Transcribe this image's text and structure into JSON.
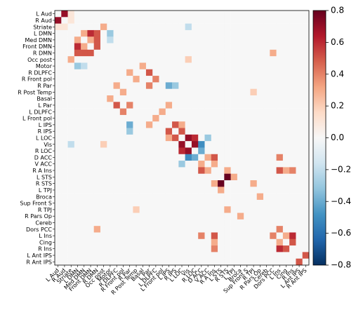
{
  "chart_data": {
    "type": "heatmap",
    "colormap": "RdBu_r",
    "x": [
      "L Aud",
      "R Aud",
      "Striate",
      "L DMN",
      "Med DMN",
      "Front DMN",
      "R DMN",
      "Occ post",
      "Motor",
      "R DLPFC",
      "R Front pol",
      "R Par",
      "R Post Temp",
      "Basal",
      "L Par",
      "L DLPFC",
      "L Front pol",
      "L IPS",
      "R IPS",
      "L LOC",
      "Vis",
      "R LOC",
      "D ACC",
      "V ACC",
      "R A Ins",
      "L STS",
      "R STS",
      "L TPJ",
      "Broca",
      "Sup Front S",
      "R TPJ",
      "R Pars Op",
      "Cereb",
      "Dors PCC",
      "L Ins",
      "Cing",
      "R Ins",
      "L Ant IPS",
      "R Ant IPS"
    ],
    "y": [
      "L Aud",
      "R Aud",
      "Striate",
      "L DMN",
      "Med DMN",
      "Front DMN",
      "R DMN",
      "Occ post",
      "Motor",
      "R DLPFC",
      "R Front pol",
      "R Par",
      "R Post Temp",
      "Basal",
      "L Par",
      "L DLPFC",
      "L Front pol",
      "L IPS",
      "R IPS",
      "L LOC",
      "Vis",
      "R LOC",
      "D ACC",
      "V ACC",
      "R A Ins",
      "L STS",
      "R STS",
      "L TPJ",
      "Broca",
      "Sup Front S",
      "R TPJ",
      "R Pars Op",
      "Cereb",
      "Dors PCC",
      "L Ins",
      "Cing",
      "R Ins",
      "L Ant IPS",
      "R Ant IPS"
    ],
    "values": [
      [
        0,
        0.7,
        0.1,
        0,
        0,
        0,
        0,
        0,
        0,
        0,
        0,
        0,
        0,
        0,
        0,
        0,
        0,
        0,
        0,
        0,
        0,
        0,
        0,
        0,
        0,
        0,
        0,
        0,
        0,
        0,
        0,
        0,
        0,
        0,
        0,
        0,
        0,
        0,
        0
      ],
      [
        0.7,
        0,
        0.1,
        0,
        0,
        0,
        0,
        0,
        0,
        0,
        0,
        0,
        0,
        0,
        0,
        0,
        0,
        0,
        0,
        0,
        0,
        0,
        0,
        0,
        0,
        0,
        0,
        0,
        0,
        0,
        0,
        0,
        0,
        0,
        0,
        0,
        0,
        0,
        0
      ],
      [
        0.1,
        0.1,
        0,
        0,
        0,
        0,
        0,
        0.3,
        0,
        0,
        0,
        0,
        0,
        0,
        0,
        0,
        0,
        0,
        0,
        0,
        -0.2,
        0,
        0,
        0,
        0,
        0,
        0,
        0,
        0,
        0,
        0,
        0,
        0,
        0,
        0,
        0,
        0,
        0,
        0
      ],
      [
        0,
        0,
        0,
        0,
        0.3,
        0.6,
        0.5,
        0,
        -0.3,
        0,
        0,
        0,
        0,
        0,
        0,
        0,
        0,
        0,
        0,
        0,
        0,
        0,
        0,
        0,
        0,
        0,
        0,
        0,
        0,
        0,
        0,
        0,
        0,
        0,
        0,
        0,
        0,
        0,
        0
      ],
      [
        0,
        0,
        0,
        0.3,
        0,
        0.3,
        0.5,
        0,
        -0.2,
        0,
        0,
        0,
        0,
        0,
        0,
        0,
        0,
        0,
        0,
        0,
        0,
        0,
        0,
        0,
        0,
        0,
        0,
        0,
        0,
        0,
        0,
        0,
        0,
        0,
        0,
        0,
        0,
        0,
        0
      ],
      [
        0,
        0,
        0,
        0.6,
        0.3,
        0,
        0.5,
        0,
        0,
        0,
        0,
        0,
        0,
        0,
        0,
        0,
        0,
        0,
        0,
        0,
        0,
        0,
        0,
        0,
        0,
        0,
        0,
        0,
        0,
        0,
        0,
        0,
        0,
        0,
        0,
        0,
        0,
        0,
        0
      ],
      [
        0,
        0,
        0,
        0.5,
        0.5,
        0.5,
        0,
        0,
        0,
        0,
        0,
        0,
        0,
        0,
        0,
        0,
        0,
        0,
        0,
        0,
        0,
        0,
        0,
        0,
        0,
        0,
        0,
        0,
        0,
        0,
        0,
        0,
        0,
        0.3,
        0,
        0,
        0,
        0,
        0
      ],
      [
        0,
        0,
        0.3,
        0,
        0,
        0,
        0,
        0,
        0,
        0,
        0,
        0,
        0,
        0,
        0,
        0,
        0,
        0,
        0,
        0,
        0.2,
        0,
        0,
        0,
        0,
        0,
        0,
        0,
        0,
        0,
        0,
        0,
        0,
        0,
        0,
        0,
        0,
        0,
        0
      ],
      [
        0,
        0,
        0,
        -0.3,
        -0.2,
        0,
        0,
        0,
        0,
        0,
        0,
        0,
        0,
        0.3,
        0,
        0,
        0,
        0,
        0,
        0,
        0,
        0,
        0,
        0,
        0,
        0,
        0,
        0,
        0,
        0,
        0,
        0,
        0,
        0,
        0,
        0,
        0,
        0,
        0
      ],
      [
        0,
        0,
        0,
        0,
        0,
        0,
        0,
        0,
        0,
        0,
        0,
        0.3,
        0,
        0,
        0.5,
        0,
        0,
        0,
        0,
        0,
        0,
        0,
        0,
        0,
        0,
        0,
        0,
        0,
        0,
        0,
        0,
        0,
        0,
        0,
        0,
        0,
        0,
        0,
        0
      ],
      [
        0,
        0,
        0,
        0,
        0,
        0,
        0,
        0,
        0,
        0,
        0,
        0,
        0.3,
        0,
        0,
        0.4,
        0,
        0,
        0,
        0,
        0,
        0,
        0,
        0,
        0,
        0,
        0,
        0,
        0,
        0,
        0,
        0,
        0,
        0,
        0,
        0,
        0,
        0,
        0
      ],
      [
        0,
        0,
        0,
        0,
        0,
        0,
        0,
        0,
        0,
        0.3,
        0,
        0,
        0,
        0,
        0.4,
        0,
        0,
        -0.4,
        -0.3,
        0,
        0,
        0,
        0,
        0,
        0,
        0,
        0,
        0,
        0,
        0,
        0,
        0,
        0,
        0,
        0,
        0,
        0,
        0,
        0
      ],
      [
        0,
        0,
        0,
        0,
        0,
        0,
        0,
        0,
        0,
        0,
        0.3,
        0,
        0,
        0,
        0,
        0,
        0,
        0,
        0,
        0,
        0,
        0,
        0,
        0,
        0,
        0,
        0,
        0,
        0,
        0,
        0.2,
        0,
        0,
        0,
        0,
        0,
        0,
        0,
        0
      ],
      [
        0,
        0,
        0,
        0,
        0,
        0,
        0,
        0,
        0.3,
        0,
        0,
        0,
        0,
        0,
        0,
        0,
        0,
        0,
        0,
        0,
        0,
        0,
        0,
        0,
        0,
        0,
        0,
        0,
        0,
        0,
        0,
        0,
        0,
        0,
        0,
        0,
        0,
        0,
        0
      ],
      [
        0,
        0,
        0,
        0,
        0,
        0,
        0,
        0,
        0,
        0.5,
        0,
        0.4,
        0,
        0,
        0,
        0,
        0,
        0.3,
        0,
        0,
        0,
        0,
        0,
        0,
        0,
        0,
        0,
        0,
        0,
        0,
        0,
        0,
        0,
        0,
        0,
        0,
        0,
        0,
        0
      ],
      [
        0,
        0,
        0,
        0,
        0,
        0,
        0,
        0,
        0,
        0,
        0.4,
        0,
        0,
        0,
        0,
        0,
        0.3,
        0,
        0,
        0,
        0,
        0,
        0,
        0,
        0,
        0,
        0,
        0,
        0,
        0,
        0,
        0,
        0,
        0,
        0,
        0,
        0,
        0,
        0
      ],
      [
        0,
        0,
        0,
        0,
        0,
        0,
        0,
        0,
        0,
        0,
        0,
        0,
        0,
        0,
        0,
        0.3,
        0,
        0,
        0,
        0,
        0,
        0,
        0,
        0,
        0,
        0,
        0,
        0,
        0,
        0,
        0,
        0,
        0,
        0,
        0,
        0,
        0,
        0,
        0
      ],
      [
        0,
        0,
        0,
        0,
        0,
        0,
        0,
        0,
        0,
        0,
        0,
        -0.4,
        0,
        0,
        0.3,
        0,
        0,
        0,
        0.5,
        0.3,
        0,
        0,
        0,
        0,
        0,
        0,
        0,
        0,
        0,
        0,
        0,
        0,
        0,
        0,
        0,
        0,
        0,
        0,
        0
      ],
      [
        0,
        0,
        0,
        0,
        0,
        0,
        0,
        0,
        0,
        0,
        0,
        -0.3,
        0,
        0,
        0,
        0,
        0,
        0.5,
        0,
        0.5,
        0,
        0,
        0,
        0,
        0,
        0,
        0,
        0,
        0,
        0,
        0,
        0,
        0,
        0,
        0,
        0,
        0,
        0,
        0
      ],
      [
        0,
        0,
        0,
        0,
        0,
        0,
        0,
        0,
        0,
        0,
        0,
        0,
        0,
        0,
        0,
        0,
        0,
        0.3,
        0.5,
        0,
        0.7,
        0.6,
        0,
        -0.3,
        0,
        0,
        0,
        0,
        0,
        0,
        0,
        0,
        0,
        0,
        0,
        0,
        0,
        0,
        0
      ],
      [
        0,
        0,
        -0.2,
        0,
        0,
        0,
        0,
        0.2,
        0,
        0,
        0,
        0,
        0,
        0,
        0,
        0,
        0,
        0,
        0,
        0.7,
        0,
        0.7,
        -0.5,
        0,
        0,
        0,
        0,
        0,
        0,
        0,
        0,
        0,
        0,
        0,
        0,
        0,
        0,
        0,
        0
      ],
      [
        0,
        0,
        0,
        0,
        0,
        0,
        0,
        0,
        0,
        0,
        0,
        0,
        0,
        0,
        0,
        0,
        0,
        0,
        0,
        0.6,
        0.7,
        0,
        -0.4,
        0,
        0,
        0,
        0,
        0,
        0,
        0,
        0,
        0,
        0,
        0,
        0,
        0,
        0,
        0,
        0
      ],
      [
        0,
        0,
        0,
        0,
        0,
        0,
        0,
        0,
        0,
        0,
        0,
        0,
        0,
        0,
        0,
        0,
        0,
        0,
        0,
        0,
        -0.5,
        -0.4,
        0,
        0.3,
        0.5,
        0,
        0,
        0,
        0,
        0,
        0,
        0,
        0,
        0,
        0.4,
        0,
        0,
        0,
        0
      ],
      [
        0,
        0,
        0,
        0,
        0,
        0,
        0,
        0,
        0,
        0,
        0,
        0,
        0,
        0,
        0,
        0,
        0,
        0,
        0,
        -0.3,
        0,
        0,
        0.3,
        0,
        0.3,
        0,
        0,
        0,
        0,
        0,
        0,
        0,
        0,
        0,
        0,
        0,
        0,
        0,
        0
      ],
      [
        0,
        0,
        0,
        0,
        0,
        0,
        0,
        0,
        0,
        0,
        0,
        0,
        0,
        0,
        0,
        0,
        0,
        0,
        0,
        0,
        0,
        0,
        0.5,
        0.3,
        0,
        0,
        0.3,
        0,
        0,
        0,
        0,
        0,
        0,
        0,
        0.5,
        0.3,
        0.4,
        0,
        0
      ],
      [
        0,
        0,
        0,
        0,
        0,
        0,
        0,
        0,
        0,
        0,
        0,
        0,
        0,
        0,
        0,
        0,
        0,
        0,
        0,
        0,
        0,
        0,
        0,
        0,
        0,
        0,
        0.8,
        0.3,
        0,
        0,
        0,
        0,
        0,
        0,
        0,
        0,
        0,
        0,
        0
      ],
      [
        0,
        0,
        0,
        0,
        0,
        0,
        0,
        0,
        0,
        0,
        0,
        0,
        0,
        0,
        0,
        0,
        0,
        0,
        0,
        0,
        0,
        0,
        0,
        0,
        0.3,
        0.8,
        0,
        0,
        0,
        0,
        0.3,
        0,
        0,
        0,
        0,
        0,
        0,
        0,
        0
      ],
      [
        0,
        0,
        0,
        0,
        0,
        0,
        0,
        0,
        0,
        0,
        0,
        0,
        0,
        0,
        0,
        0,
        0,
        0,
        0,
        0,
        0,
        0,
        0,
        0,
        0,
        0.3,
        0,
        0,
        0,
        0,
        0,
        0,
        0,
        0,
        0,
        0,
        0,
        0,
        0
      ],
      [
        0,
        0,
        0,
        0,
        0,
        0,
        0,
        0,
        0,
        0,
        0,
        0,
        0,
        0,
        0,
        0,
        0,
        0,
        0,
        0,
        0,
        0,
        0,
        0,
        0,
        0,
        0,
        0,
        0,
        0,
        0,
        0.3,
        0,
        0,
        0,
        0,
        0,
        0,
        0
      ],
      [
        0,
        0,
        0,
        0,
        0,
        0,
        0,
        0,
        0,
        0,
        0,
        0,
        0,
        0,
        0,
        0,
        0,
        0,
        0,
        0,
        0,
        0,
        0,
        0,
        0,
        0,
        0,
        0,
        0,
        0,
        0,
        0,
        0,
        0,
        0,
        0,
        0,
        0,
        0
      ],
      [
        0,
        0,
        0,
        0,
        0,
        0,
        0,
        0,
        0,
        0,
        0,
        0,
        0.2,
        0,
        0,
        0,
        0,
        0,
        0,
        0,
        0,
        0,
        0,
        0,
        0,
        0,
        0.3,
        0,
        0,
        0,
        0,
        0,
        0,
        0,
        0,
        0,
        0,
        0,
        0
      ],
      [
        0,
        0,
        0,
        0,
        0,
        0,
        0,
        0,
        0,
        0,
        0,
        0,
        0,
        0,
        0,
        0,
        0,
        0,
        0,
        0,
        0,
        0,
        0,
        0,
        0,
        0,
        0,
        0,
        0.3,
        0,
        0,
        0,
        0,
        0,
        0,
        0,
        0,
        0,
        0
      ],
      [
        0,
        0,
        0,
        0,
        0,
        0,
        0,
        0,
        0,
        0,
        0,
        0,
        0,
        0,
        0,
        0,
        0,
        0,
        0,
        0,
        0,
        0,
        0,
        0,
        0,
        0,
        0,
        0,
        0,
        0,
        0,
        0,
        0,
        0,
        0,
        0,
        0,
        0,
        0
      ],
      [
        0,
        0,
        0,
        0,
        0,
        0,
        0.3,
        0,
        0,
        0,
        0,
        0,
        0,
        0,
        0,
        0,
        0,
        0,
        0,
        0,
        0,
        0,
        0,
        0,
        0,
        0,
        0,
        0,
        0,
        0,
        0,
        0,
        0,
        0,
        0.4,
        0,
        0,
        0,
        0
      ],
      [
        0,
        0,
        0,
        0,
        0,
        0,
        0,
        0,
        0,
        0,
        0,
        0,
        0,
        0,
        0,
        0,
        0,
        0,
        0,
        0,
        0,
        0,
        0.4,
        0,
        0.5,
        0,
        0,
        0,
        0,
        0,
        0,
        0,
        0,
        0.4,
        0,
        0.3,
        0.6,
        0,
        0
      ],
      [
        0,
        0,
        0,
        0,
        0,
        0,
        0,
        0,
        0,
        0,
        0,
        0,
        0,
        0,
        0,
        0,
        0,
        0,
        0,
        0,
        0,
        0,
        0,
        0,
        0.3,
        0,
        0,
        0,
        0,
        0,
        0,
        0,
        0,
        0,
        0.3,
        0,
        0.5,
        0,
        0
      ],
      [
        0,
        0,
        0,
        0,
        0,
        0,
        0,
        0,
        0,
        0,
        0,
        0,
        0,
        0,
        0,
        0,
        0,
        0,
        0,
        0,
        0,
        0,
        0,
        0,
        0.4,
        0,
        0,
        0,
        0,
        0,
        0,
        0,
        0,
        0,
        0.6,
        0.5,
        0,
        0,
        0
      ],
      [
        0,
        0,
        0,
        0,
        0,
        0,
        0,
        0,
        0,
        0,
        0,
        0,
        0,
        0,
        0,
        0,
        0,
        0,
        0,
        0,
        0,
        0,
        0,
        0,
        0,
        0,
        0,
        0,
        0,
        0,
        0,
        0,
        0,
        0,
        0,
        0,
        0,
        0,
        0.5
      ],
      [
        0,
        0,
        0,
        0,
        0,
        0,
        0,
        0,
        0,
        0,
        0,
        0,
        0,
        0,
        0,
        0,
        0,
        0,
        0,
        0,
        0,
        0,
        0,
        0,
        0,
        0,
        0,
        0,
        0,
        0,
        0,
        0,
        0,
        0,
        0,
        0,
        0,
        0.5,
        0
      ]
    ],
    "clim": [
      -0.8,
      0.8
    ],
    "cticks": [
      {
        "value": -0.8,
        "label": "−0.8"
      },
      {
        "value": -0.6,
        "label": "−0.6"
      },
      {
        "value": -0.4,
        "label": "−0.4"
      },
      {
        "value": -0.2,
        "label": "−0.2"
      },
      {
        "value": 0,
        "label": "0.0"
      },
      0.2,
      0.4,
      0.6,
      0.8
    ]
  }
}
